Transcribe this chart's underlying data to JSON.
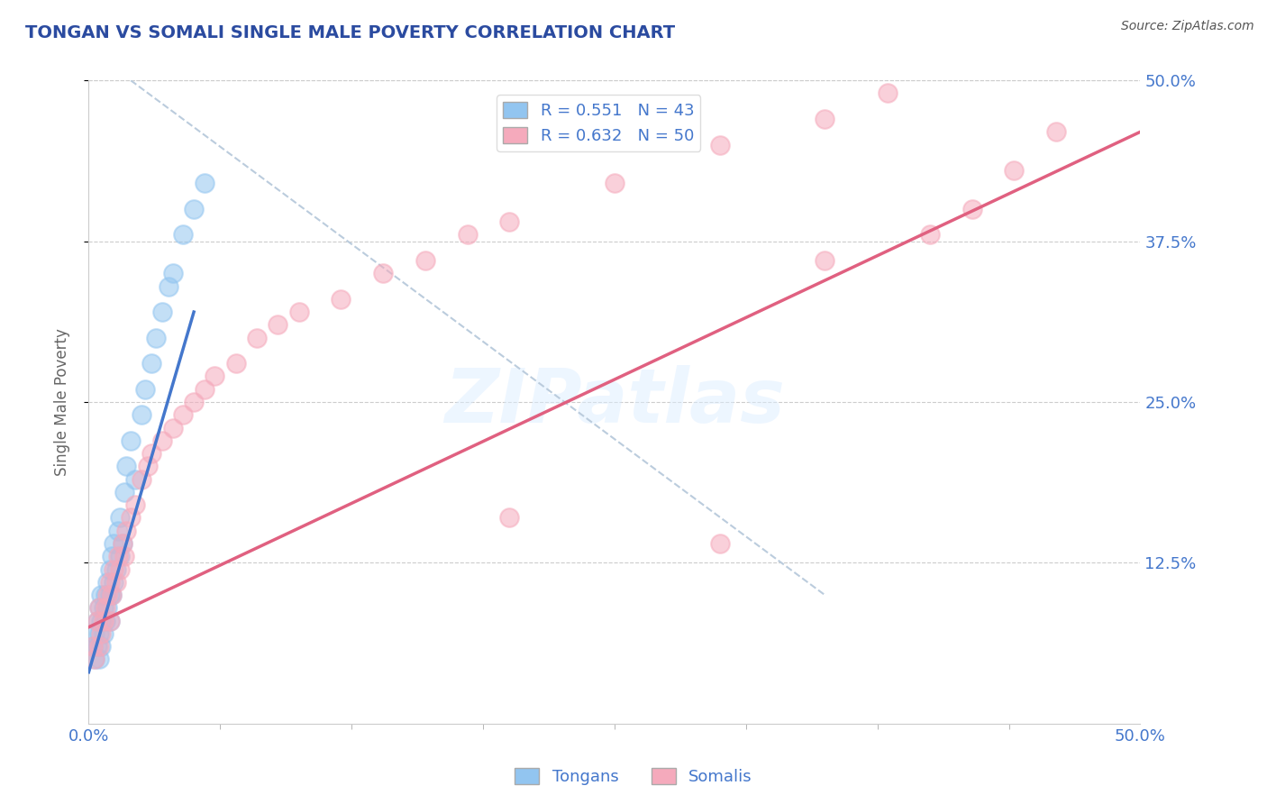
{
  "title": "TONGAN VS SOMALI SINGLE MALE POVERTY CORRELATION CHART",
  "source": "Source: ZipAtlas.com",
  "ylabel": "Single Male Poverty",
  "xlim": [
    0.0,
    0.5
  ],
  "ylim": [
    0.0,
    0.5
  ],
  "xtick_vals": [
    0.0,
    0.5
  ],
  "xtick_labels": [
    "0.0%",
    "50.0%"
  ],
  "ytick_vals": [
    0.125,
    0.25,
    0.375,
    0.5
  ],
  "ytick_labels": [
    "12.5%",
    "25.0%",
    "37.5%",
    "50.0%"
  ],
  "legend_r_tongan": "R = 0.551",
  "legend_n_tongan": "N = 43",
  "legend_r_somali": "R = 0.632",
  "legend_n_somali": "N = 50",
  "tongan_color": "#92C5F0",
  "somali_color": "#F5AABC",
  "tongan_line_color": "#4477CC",
  "somali_line_color": "#E06080",
  "ref_line_color": "#BBCCDD",
  "title_color": "#2B4BA0",
  "axis_label_color": "#666666",
  "tick_color": "#4477CC",
  "background_color": "#FFFFFF",
  "grid_color": "#CCCCCC",
  "watermark_text": "ZIPatlas",
  "tongan_x": [
    0.002,
    0.003,
    0.003,
    0.004,
    0.004,
    0.005,
    0.005,
    0.005,
    0.006,
    0.006,
    0.006,
    0.007,
    0.007,
    0.008,
    0.008,
    0.009,
    0.009,
    0.01,
    0.01,
    0.01,
    0.011,
    0.011,
    0.012,
    0.012,
    0.013,
    0.014,
    0.015,
    0.015,
    0.016,
    0.017,
    0.018,
    0.02,
    0.022,
    0.025,
    0.027,
    0.03,
    0.032,
    0.035,
    0.038,
    0.04,
    0.045,
    0.05,
    0.055
  ],
  "tongan_y": [
    0.06,
    0.05,
    0.07,
    0.06,
    0.08,
    0.05,
    0.07,
    0.09,
    0.06,
    0.08,
    0.1,
    0.07,
    0.09,
    0.08,
    0.1,
    0.09,
    0.11,
    0.08,
    0.1,
    0.12,
    0.1,
    0.13,
    0.11,
    0.14,
    0.12,
    0.15,
    0.13,
    0.16,
    0.14,
    0.18,
    0.2,
    0.22,
    0.19,
    0.24,
    0.26,
    0.28,
    0.3,
    0.32,
    0.34,
    0.35,
    0.38,
    0.4,
    0.42
  ],
  "somali_x": [
    0.002,
    0.003,
    0.004,
    0.005,
    0.005,
    0.006,
    0.007,
    0.008,
    0.009,
    0.01,
    0.01,
    0.011,
    0.012,
    0.013,
    0.014,
    0.015,
    0.016,
    0.017,
    0.018,
    0.02,
    0.022,
    0.025,
    0.028,
    0.03,
    0.035,
    0.04,
    0.045,
    0.05,
    0.055,
    0.06,
    0.07,
    0.08,
    0.09,
    0.1,
    0.12,
    0.14,
    0.16,
    0.18,
    0.2,
    0.25,
    0.3,
    0.35,
    0.38,
    0.4,
    0.42,
    0.44,
    0.46,
    0.2,
    0.3,
    0.35
  ],
  "somali_y": [
    0.06,
    0.05,
    0.08,
    0.06,
    0.09,
    0.07,
    0.08,
    0.09,
    0.1,
    0.08,
    0.11,
    0.1,
    0.12,
    0.11,
    0.13,
    0.12,
    0.14,
    0.13,
    0.15,
    0.16,
    0.17,
    0.19,
    0.2,
    0.21,
    0.22,
    0.23,
    0.24,
    0.25,
    0.26,
    0.27,
    0.28,
    0.3,
    0.31,
    0.32,
    0.33,
    0.35,
    0.36,
    0.38,
    0.39,
    0.42,
    0.45,
    0.47,
    0.49,
    0.38,
    0.4,
    0.43,
    0.46,
    0.16,
    0.14,
    0.36
  ],
  "tongan_line_x": [
    0.0,
    0.05
  ],
  "somali_line_x": [
    0.0,
    0.5
  ],
  "tongan_line_y_start": 0.04,
  "tongan_line_y_end": 0.32,
  "somali_line_y_start": 0.075,
  "somali_line_y_end": 0.46,
  "ref_line_x": [
    0.02,
    0.35
  ],
  "ref_line_y": [
    0.5,
    0.1
  ]
}
